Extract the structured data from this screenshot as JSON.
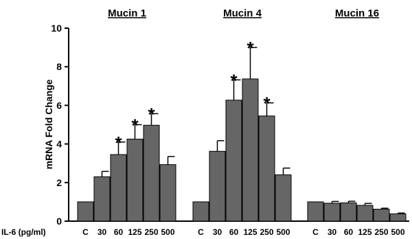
{
  "chart_data": {
    "type": "bar",
    "ylabel": "mRNA Fold Change",
    "xlabel": "IL-6 (pg/ml)",
    "ylim": [
      0,
      10
    ],
    "yticks": [
      0,
      2,
      4,
      6,
      8,
      10
    ],
    "categories": [
      "C",
      "30",
      "60",
      "125",
      "250",
      "500"
    ],
    "bar_color": "#666666",
    "significance_marker": "*",
    "groups": [
      {
        "title": "Mucin 1",
        "values": [
          1.0,
          2.3,
          3.45,
          4.25,
          4.97,
          2.93
        ],
        "errors": [
          0,
          0.28,
          0.65,
          0.75,
          0.6,
          0.42
        ],
        "significant": [
          false,
          false,
          true,
          true,
          true,
          false
        ]
      },
      {
        "title": "Mucin 4",
        "values": [
          1.0,
          3.62,
          6.27,
          7.37,
          5.45,
          2.4
        ],
        "errors": [
          0,
          0.55,
          1.05,
          1.63,
          0.68,
          0.35
        ],
        "significant": [
          false,
          false,
          true,
          true,
          true,
          false
        ]
      },
      {
        "title": "Mucin 16",
        "values": [
          1.0,
          0.93,
          0.95,
          0.82,
          0.62,
          0.38
        ],
        "errors": [
          0,
          0.09,
          0.08,
          0.1,
          0.05,
          0.04
        ],
        "significant": [
          false,
          false,
          false,
          false,
          false,
          false
        ]
      }
    ]
  }
}
